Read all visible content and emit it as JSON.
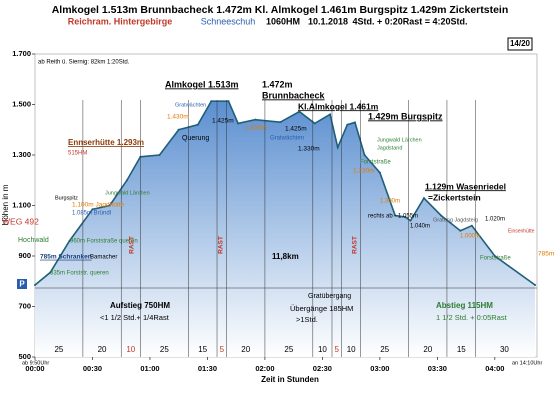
{
  "chart_data": {
    "type": "area",
    "title": "Almkogel 1.513m Brunnbacheck 1.472m Kl. Almkogel 1.461m Burgspitz 1.429m Zickertstein",
    "subtitle_parts": [
      "Reichram. Hintergebirge",
      "Schneeschuh",
      "1060HM",
      "10.1.2018",
      "4Std. + 0:20Rast = 4:20Std."
    ],
    "badge": "14/20",
    "note": "ab Reith ü. Siernig: 82km 1:20Std.",
    "ylabel": "Höhen in m",
    "xlabel": "Zeit in Stunden",
    "start_label": "ab 9:50Uhr",
    "end_label": "an 14:10Uhr",
    "parking": "P",
    "color": "#1f5f7a",
    "fill": "#7aa6d8",
    "grid": false,
    "x": [
      0,
      8,
      18,
      30,
      39,
      48,
      55,
      65,
      75,
      85,
      92,
      101,
      106,
      115,
      128,
      138,
      146,
      154,
      158,
      163,
      167,
      172,
      180,
      188,
      193,
      196,
      203,
      212,
      222,
      228,
      240,
      261
    ],
    "values": [
      785,
      835,
      960,
      1085,
      1100,
      1200,
      1293,
      1300,
      1400,
      1420,
      1513,
      1513,
      1425,
      1440,
      1430,
      1472,
      1425,
      1461,
      1330,
      1420,
      1429,
      1300,
      1230,
      1060,
      1055,
      1040,
      1129,
      1060,
      1000,
      1020,
      900,
      785
    ],
    "xlim": [
      0,
      262
    ],
    "ylim": [
      500,
      1700
    ],
    "xticks": [
      {
        "value": 0,
        "label": "00:00"
      },
      {
        "value": 30,
        "label": "00:30"
      },
      {
        "value": 60,
        "label": "01:00"
      },
      {
        "value": 90,
        "label": "01:30"
      },
      {
        "value": 120,
        "label": "02:00"
      },
      {
        "value": 150,
        "label": "02:30"
      },
      {
        "value": 180,
        "label": "03:00"
      },
      {
        "value": 210,
        "label": "03:30"
      },
      {
        "value": 240,
        "label": "04:00"
      }
    ],
    "yticks": [
      500,
      700,
      900,
      {
        "value": 1100,
        "label": "1.100"
      },
      {
        "value": 1300,
        "label": "1.300"
      },
      {
        "value": 1500,
        "label": "1.500"
      },
      {
        "value": 1700,
        "label": "1.700"
      }
    ],
    "segments": [
      25,
      20,
      10,
      25,
      15,
      5,
      20,
      25,
      10,
      5,
      10,
      25,
      20,
      15,
      30
    ],
    "annotations": [
      "Almkogel 1.513m",
      "1.472m",
      "Brunnbacheck",
      "Kl.Almkogel 1.461m",
      "1.429m Burgspitz",
      "Ennserhütte 1.293m",
      "515HM",
      "1.129m Wasenriedel",
      "=Zickertstein",
      "WEG 492",
      "Hochwald",
      "Burgspitz",
      "1.100m Jagdhütte",
      "1.085m Bründl",
      "Jungwald Lärchen",
      "960m Forststraße queren",
      "835m Forststr. queren",
      "785m Schranken",
      "Bamacher",
      "Querung",
      "1.425m",
      "1.430m",
      "Gratwächten",
      "1.430m",
      "1.425m",
      "Gratwächten",
      "1.330m",
      "Jungwald Lärchen",
      "Jagdstand",
      "1.230m",
      "Forststraße",
      "1.300m",
      "rechts ab - 1.055m",
      "1.040m",
      "Grateng Jagdsteig",
      "1.000m",
      "1.020m",
      "Einsenhütte",
      "Forststraße",
      "785m",
      "11,8km",
      "Gratübergang",
      "Aufstieg 750HM",
      "<1 1/2 Std.+ 1/4Rast",
      "Übergänge 185HM",
      ">1Std.",
      "Abstieg 115HM",
      "1 1/2 Std. + 0:05Rast",
      "RAST",
      "RAST",
      "RAST"
    ]
  }
}
